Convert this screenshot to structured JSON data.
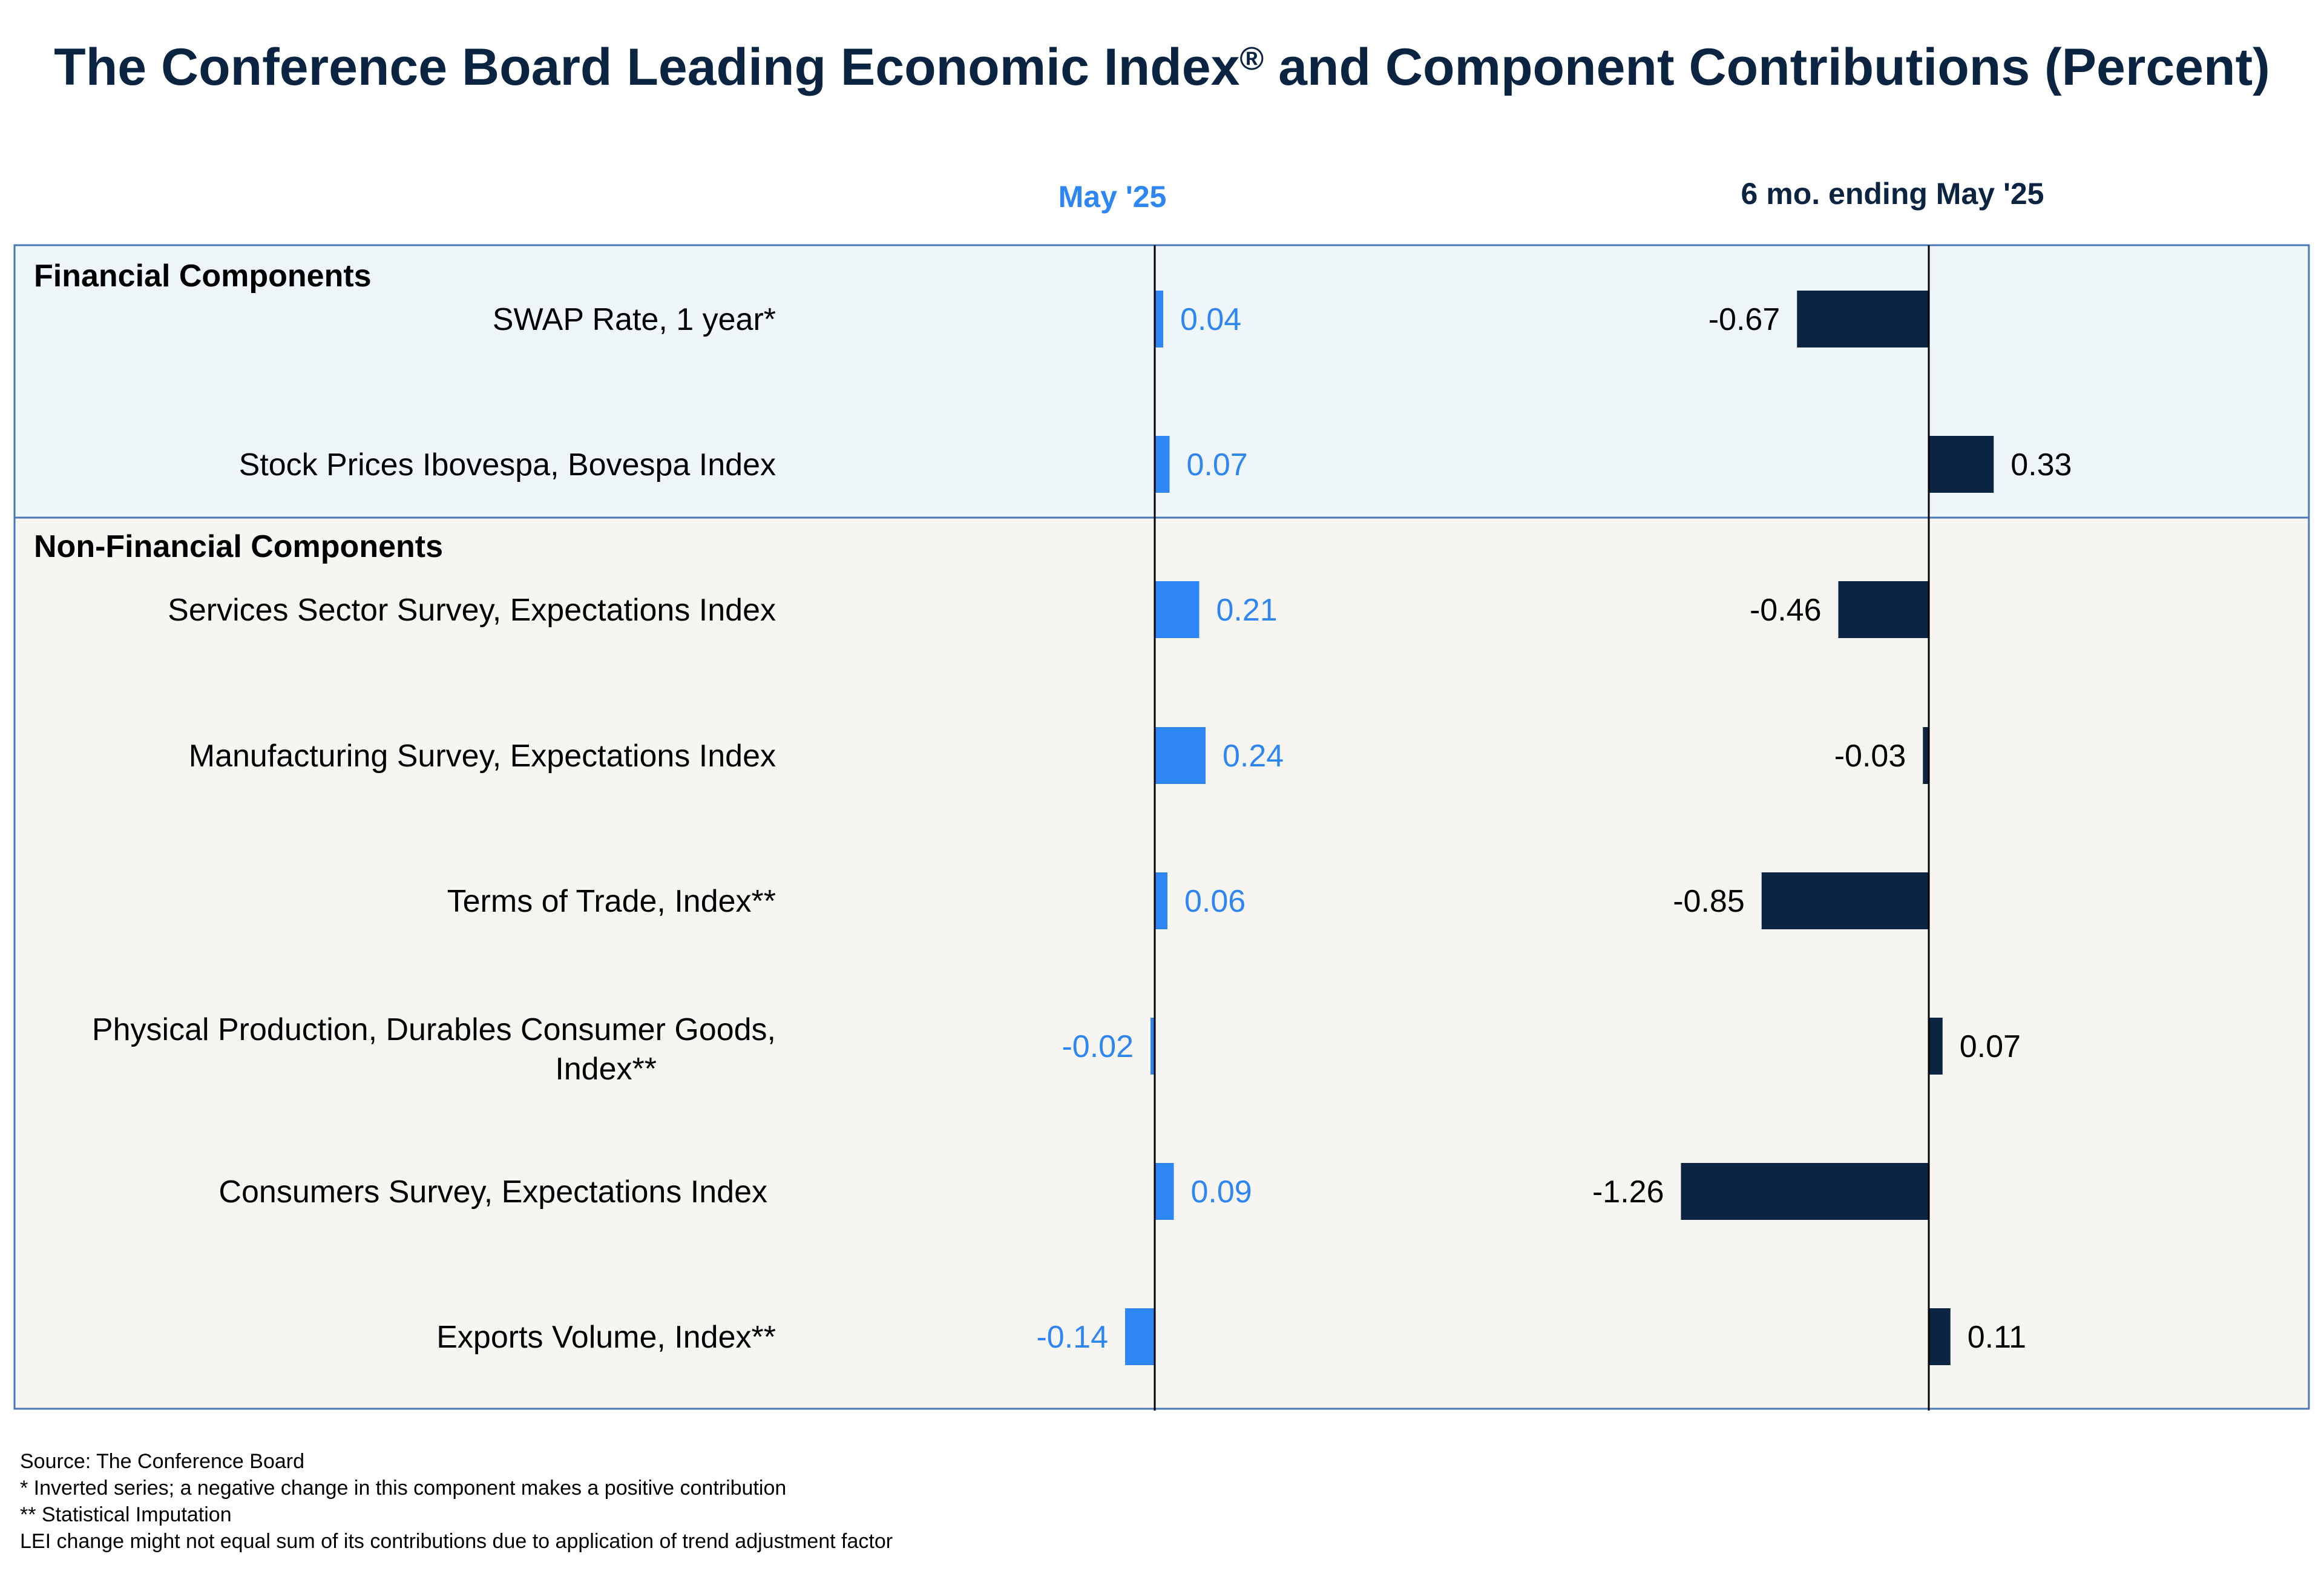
{
  "title": {
    "main": "The Conference Board Leading Economic Index",
    "mark": "®",
    "suffix": " and Component Contributions (Percent)"
  },
  "colors": {
    "current": "#2e86f5",
    "six_month": "#0b2442",
    "financial_bg": "#eef6f9",
    "nonfinancial_bg": "#f7f5f2",
    "border": "#4a78b5"
  },
  "chart_data": {
    "type": "bar",
    "orientation": "horizontal",
    "title": "The Conference Board Leading Economic Index® and Component Contributions (Percent)",
    "groups": [
      {
        "name": "Financial Components",
        "categories": [
          "SWAP Rate, 1 year*",
          "Stock Prices Ibovespa, Bovespa Index"
        ]
      },
      {
        "name": "Non-Financial Components",
        "categories": [
          "Services Sector Survey, Expectations Index",
          "Manufacturing Survey, Expectations Index",
          "Terms of Trade, Index**",
          "Physical Production, Durables Consumer Goods, Index**",
          "Consumers Survey, Expectations Index",
          "Exports Volume, Index**"
        ]
      }
    ],
    "categories": [
      "SWAP Rate, 1 year*",
      "Stock Prices Ibovespa, Bovespa Index",
      "Services Sector Survey, Expectations Index",
      "Manufacturing Survey, Expectations Index",
      "Terms of Trade, Index**",
      "Physical Production, Durables Consumer Goods, Index**",
      "Consumers Survey, Expectations Index",
      "Exports Volume, Index**"
    ],
    "series": [
      {
        "name": "May '25",
        "values": [
          0.04,
          0.07,
          0.21,
          0.24,
          0.06,
          -0.02,
          0.09,
          -0.14
        ],
        "labels": [
          "0.04",
          "0.07",
          "0.21",
          "0.24",
          "0.06",
          "-0.02",
          "0.09",
          "-0.14"
        ]
      },
      {
        "name": "6 mo. ending May '25",
        "values": [
          -0.67,
          0.33,
          -0.46,
          -0.03,
          -0.85,
          0.07,
          -1.26,
          0.11
        ],
        "labels": [
          "-0.67",
          "0.33",
          "-0.46",
          "-0.03",
          "-0.85",
          "0.07",
          "-1.26",
          "0.11"
        ]
      }
    ]
  },
  "footnotes": {
    "source": "Source: The Conference Board",
    "note1": "*  Inverted series; a negative change in this component makes a positive contribution",
    "note2": "** Statistical Imputation",
    "note3": "LEI change might not equal sum of its contributions due to application of trend adjustment factor"
  }
}
